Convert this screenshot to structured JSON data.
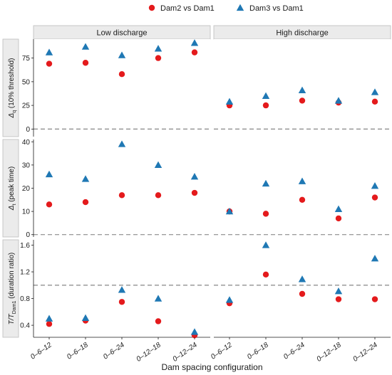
{
  "chart_data": {
    "type": "scatter",
    "xlabel": "Dam spacing configuration",
    "categories": [
      "0–6–12",
      "0–6–18",
      "0–6–24",
      "0–12–18",
      "0–12–24"
    ],
    "columns": [
      "Low discharge",
      "High discharge"
    ],
    "legend": {
      "placement": "top",
      "entries": [
        {
          "name": "Dam2 vs Dam1",
          "marker": "circle",
          "color": "#e41a1c"
        },
        {
          "name": "Dam3 vs Dam1",
          "marker": "triangle",
          "color": "#1f78b4"
        }
      ]
    },
    "rows": [
      {
        "ylabel_main": "Δ",
        "ylabel_sub": "q",
        "ylabel_rest": " (10% threshold)",
        "ylim": [
          -8,
          95
        ],
        "yticks": [
          0,
          25,
          50,
          75
        ],
        "ref_line": 0,
        "panels": [
          {
            "series": [
              {
                "name": "Dam2 vs Dam1",
                "values": [
                  69,
                  70,
                  58,
                  75,
                  81
                ]
              },
              {
                "name": "Dam3 vs Dam1",
                "values": [
                  81,
                  87,
                  78,
                  85,
                  91
                ]
              }
            ]
          },
          {
            "series": [
              {
                "name": "Dam2 vs Dam1",
                "values": [
                  25,
                  25,
                  30,
                  28,
                  29
                ]
              },
              {
                "name": "Dam3 vs Dam1",
                "values": [
                  29,
                  35,
                  41,
                  30,
                  39
                ]
              }
            ]
          }
        ]
      },
      {
        "ylabel_main": "Δ",
        "ylabel_sub": "t",
        "ylabel_rest": " (peak time)",
        "ylim": [
          -1,
          41
        ],
        "yticks": [
          0,
          10,
          20,
          30,
          40
        ],
        "ref_line": 0,
        "panels": [
          {
            "series": [
              {
                "name": "Dam2 vs Dam1",
                "values": [
                  13,
                  14,
                  17,
                  17,
                  18
                ]
              },
              {
                "name": "Dam3 vs Dam1",
                "values": [
                  26,
                  24,
                  39,
                  30,
                  25
                ]
              }
            ]
          },
          {
            "series": [
              {
                "name": "Dam2 vs Dam1",
                "values": [
                  10,
                  9,
                  15,
                  7,
                  16
                ]
              },
              {
                "name": "Dam3 vs Dam1",
                "values": [
                  10,
                  22,
                  23,
                  11,
                  21
                ]
              }
            ]
          }
        ]
      },
      {
        "ylabel_main": "T/T",
        "ylabel_sub": "Dam1",
        "ylabel_rest": " (duration ratio)",
        "ylim": [
          0.22,
          1.68
        ],
        "yticks": [
          0.4,
          0.8,
          1.2,
          1.6
        ],
        "ref_line": 1.0,
        "panels": [
          {
            "series": [
              {
                "name": "Dam2 vs Dam1",
                "values": [
                  0.42,
                  0.47,
                  0.75,
                  0.46,
                  0.25
                ]
              },
              {
                "name": "Dam3 vs Dam1",
                "values": [
                  0.5,
                  0.51,
                  0.93,
                  0.8,
                  0.3
                ]
              }
            ]
          },
          {
            "series": [
              {
                "name": "Dam2 vs Dam1",
                "values": [
                  0.73,
                  1.16,
                  0.87,
                  0.79,
                  0.79
                ]
              },
              {
                "name": "Dam3 vs Dam1",
                "values": [
                  0.78,
                  1.6,
                  1.09,
                  0.91,
                  1.4
                ]
              }
            ]
          }
        ]
      }
    ],
    "grid": false
  }
}
